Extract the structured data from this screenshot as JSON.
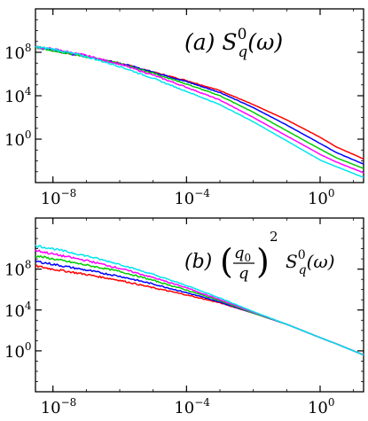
{
  "chart_data": [
    {
      "type": "line",
      "panel_label": "(a)",
      "label_symbol": "S",
      "label_sub": "q",
      "label_sup": "0",
      "label_arg": "(ω)",
      "x_scale": "log",
      "y_scale": "log",
      "xlim": [
        3e-09,
        20
      ],
      "ylim": [
        0.0001,
        1000000000000.0
      ],
      "x_ticks": [
        {
          "v": 1e-08,
          "base": "10",
          "exp": "−8"
        },
        {
          "v": 0.0001,
          "base": "10",
          "exp": "−4"
        },
        {
          "v": 1,
          "base": "10",
          "exp": "0"
        }
      ],
      "y_ticks": [
        {
          "v": 1,
          "base": "10",
          "exp": "0"
        },
        {
          "v": 10000.0,
          "base": "10",
          "exp": "4"
        },
        {
          "v": 100000000.0,
          "base": "10",
          "exp": "8"
        }
      ],
      "series": [
        {
          "color": "#ff0000",
          "values": [
            [
              3e-09,
              300000000.0
            ],
            [
              1e-08,
              150000000.0
            ],
            [
              1e-07,
              40000000.0
            ],
            [
              1e-06,
              10000000.0
            ],
            [
              1e-05,
              1500000.0
            ],
            [
              0.0001,
              250000.0
            ],
            [
              0.001,
              30000.0
            ],
            [
              0.01,
              1500.0
            ],
            [
              0.1,
              60
            ],
            [
              1,
              1.5
            ],
            [
              3,
              0.2
            ],
            [
              20,
              0.015
            ]
          ]
        },
        {
          "color": "#0000ff",
          "values": [
            [
              3e-09,
              300000000.0
            ],
            [
              1e-08,
              150000000.0
            ],
            [
              1e-07,
              40000000.0
            ],
            [
              1e-06,
              10000000.0
            ],
            [
              1e-05,
              1500000.0
            ],
            [
              0.0001,
              200000.0
            ],
            [
              0.001,
              20000.0
            ],
            [
              0.01,
              800.0
            ],
            [
              0.1,
              20
            ],
            [
              1,
              0.4
            ],
            [
              3,
              0.06
            ],
            [
              20,
              0.005
            ]
          ]
        },
        {
          "color": "#00cc00",
          "values": [
            [
              3e-09,
              300000000.0
            ],
            [
              1e-08,
              150000000.0
            ],
            [
              1e-07,
              40000000.0
            ],
            [
              1e-06,
              9000000.0
            ],
            [
              1e-05,
              1200000.0
            ],
            [
              0.0001,
              120000.0
            ],
            [
              0.001,
              10000.0
            ],
            [
              0.01,
              300.0
            ],
            [
              0.1,
              6
            ],
            [
              1,
              0.12
            ],
            [
              3,
              0.02
            ],
            [
              20,
              0.002
            ]
          ]
        },
        {
          "color": "#ff00ff",
          "values": [
            [
              3e-09,
              300000000.0
            ],
            [
              1e-08,
              200000000.0
            ],
            [
              1e-07,
              50000000.0
            ],
            [
              1e-06,
              8000000.0
            ],
            [
              1e-05,
              800000.0
            ],
            [
              0.0001,
              60000.0
            ],
            [
              0.001,
              4000.0
            ],
            [
              0.01,
              100.0
            ],
            [
              0.1,
              2
            ],
            [
              1,
              0.04
            ],
            [
              3,
              0.008
            ],
            [
              20,
              0.0008
            ]
          ]
        },
        {
          "color": "#00e5ee",
          "values": [
            [
              3e-09,
              300000000.0
            ],
            [
              1e-08,
              200000000.0
            ],
            [
              1e-07,
              40000000.0
            ],
            [
              1e-06,
              5000000.0
            ],
            [
              1e-05,
              400000.0
            ],
            [
              0.0001,
              25000.0
            ],
            [
              0.001,
              1500.0
            ],
            [
              0.01,
              40
            ],
            [
              0.1,
              0.7
            ],
            [
              1,
              0.012
            ],
            [
              3,
              0.003
            ],
            [
              20,
              0.0003
            ]
          ]
        }
      ]
    },
    {
      "type": "line",
      "panel_label": "(b)",
      "label_frac_num": "q",
      "label_frac_num_sub": "0",
      "label_frac_den": "q",
      "label_frac_exp": "2",
      "label_symbol": "S",
      "label_sub": "q",
      "label_sup": "0",
      "label_arg": "(ω)",
      "x_scale": "log",
      "y_scale": "log",
      "xlim": [
        3e-09,
        20
      ],
      "ylim": [
        0.0001,
        10000000000000.0
      ],
      "x_ticks": [
        {
          "v": 1e-08,
          "base": "10",
          "exp": "−8"
        },
        {
          "v": 0.0001,
          "base": "10",
          "exp": "−4"
        },
        {
          "v": 1,
          "base": "10",
          "exp": "0"
        }
      ],
      "y_ticks": [
        {
          "v": 1,
          "base": "10",
          "exp": "0"
        },
        {
          "v": 10000.0,
          "base": "10",
          "exp": "4"
        },
        {
          "v": 100000000.0,
          "base": "10",
          "exp": "8"
        }
      ],
      "series": [
        {
          "color": "#ff0000",
          "values": [
            [
              3e-09,
              200000000.0
            ],
            [
              1e-08,
              100000000.0
            ],
            [
              1e-07,
              30000000.0
            ],
            [
              1e-06,
              8000000.0
            ],
            [
              1e-05,
              1500000.0
            ],
            [
              0.0001,
              300000.0
            ],
            [
              0.001,
              50000.0
            ],
            [
              0.01,
              5000.0
            ],
            [
              0.1,
              400.0
            ],
            [
              1,
              20
            ],
            [
              3,
              5
            ],
            [
              20,
              0.4
            ]
          ]
        },
        {
          "color": "#0000ff",
          "values": [
            [
              3e-09,
              600000000.0
            ],
            [
              1e-08,
              300000000.0
            ],
            [
              1e-07,
              80000000.0
            ],
            [
              1e-06,
              20000000.0
            ],
            [
              1e-05,
              3500000.0
            ],
            [
              0.0001,
              500000.0
            ],
            [
              0.001,
              60000.0
            ],
            [
              0.01,
              5000.0
            ],
            [
              0.1,
              400.0
            ],
            [
              1,
              20
            ],
            [
              3,
              5
            ],
            [
              20,
              0.4
            ]
          ]
        },
        {
          "color": "#00cc00",
          "values": [
            [
              3e-09,
              2000000000.0
            ],
            [
              1e-08,
              1000000000.0
            ],
            [
              1e-07,
              250000000.0
            ],
            [
              1e-06,
              60000000.0
            ],
            [
              1e-05,
              8000000.0
            ],
            [
              0.0001,
              900000.0
            ],
            [
              0.001,
              80000.0
            ],
            [
              0.01,
              5000.0
            ],
            [
              0.1,
              400.0
            ],
            [
              1,
              20
            ],
            [
              3,
              5
            ],
            [
              20,
              0.4
            ]
          ]
        },
        {
          "color": "#ff00ff",
          "values": [
            [
              3e-09,
              7000000000.0
            ],
            [
              1e-08,
              3000000000.0
            ],
            [
              1e-07,
              700000000.0
            ],
            [
              1e-06,
              120000000.0
            ],
            [
              1e-05,
              15000000.0
            ],
            [
              0.0001,
              1500000.0
            ],
            [
              0.001,
              100000.0
            ],
            [
              0.01,
              6000.0
            ],
            [
              0.1,
              400.0
            ],
            [
              1,
              20
            ],
            [
              3,
              5
            ],
            [
              20,
              0.4
            ]
          ]
        },
        {
          "color": "#00e5ee",
          "values": [
            [
              3e-09,
              20000000000.0
            ],
            [
              1e-08,
              10000000000.0
            ],
            [
              1e-07,
              2000000000.0
            ],
            [
              1e-06,
              300000000.0
            ],
            [
              1e-05,
              30000000.0
            ],
            [
              0.0001,
              2500000.0
            ],
            [
              0.001,
              150000.0
            ],
            [
              0.01,
              7000.0
            ],
            [
              0.1,
              400.0
            ],
            [
              1,
              20
            ],
            [
              3,
              5
            ],
            [
              20,
              0.4
            ]
          ]
        }
      ]
    }
  ]
}
